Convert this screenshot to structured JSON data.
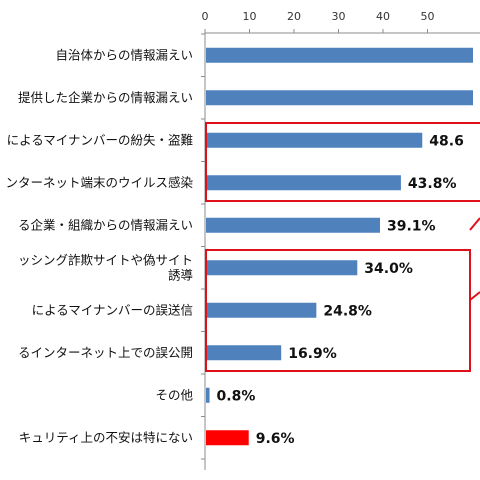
{
  "chart_data": {
    "type": "bar",
    "orientation": "horizontal",
    "categories": [
      "自治体からの情報漏えい",
      "提供した企業からの情報漏えい",
      "によるマイナンバーの紛失・盗難",
      "ンターネット端末のウイルス感染",
      "る企業・組織からの情報漏えい",
      "ッシング詐欺サイトや偽サイト\n誘導",
      "によるマイナンバーの誤送信",
      "るインターネット上での誤公開",
      "その他",
      "キュリティ上の不安は特にない"
    ],
    "values": [
      60,
      60,
      48.6,
      43.8,
      39.1,
      34.0,
      24.8,
      16.9,
      0.8,
      9.6
    ],
    "data_labels": [
      "",
      "",
      "48.6",
      "43.8%",
      "39.1%",
      "34.0%",
      "24.8%",
      "16.9%",
      "0.8%",
      "9.6%"
    ],
    "bar_colors": [
      "#4F81BD",
      "#4F81BD",
      "#4F81BD",
      "#4F81BD",
      "#4F81BD",
      "#4F81BD",
      "#4F81BD",
      "#4F81BD",
      "#4F81BD",
      "#FF0000"
    ],
    "x_ticks": [
      "0",
      "10",
      "20",
      "30",
      "40",
      "50"
    ],
    "xlim": [
      0,
      60
    ],
    "xaxis_position": "top",
    "grid": false,
    "highlight_color": "#E0101A",
    "highlight_groups": [
      [
        2,
        3
      ],
      [
        5,
        6,
        7
      ]
    ]
  }
}
